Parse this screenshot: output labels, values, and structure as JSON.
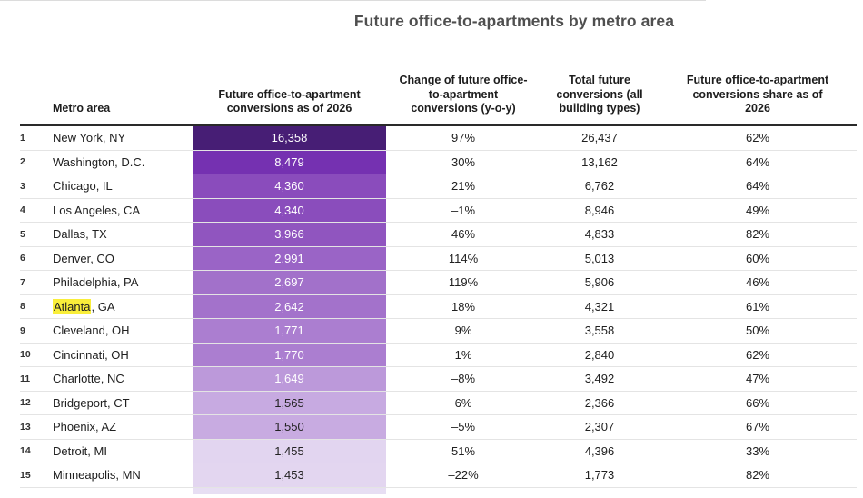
{
  "page": {
    "title": "Future office-to-apartments by metro area"
  },
  "table": {
    "columns": [
      {
        "key": "rank",
        "label": ""
      },
      {
        "key": "metro",
        "label": "Metro area"
      },
      {
        "key": "conversions",
        "label": "Future office-to-apartment conversions as of 2026"
      },
      {
        "key": "change",
        "label": "Change of future office-to-apartment conversions (y-o-y)"
      },
      {
        "key": "total",
        "label": "Total future conversions (all building types)"
      },
      {
        "key": "share",
        "label": "Future office-to-apartment conversions share as of 2026"
      }
    ],
    "rows": [
      {
        "rank": "1",
        "metro": "New York, NY",
        "conversions": "16,358",
        "change": "97%",
        "total": "26,437",
        "share": "62%",
        "cell_color": "#471e75",
        "cell_text_color": "#ffffff"
      },
      {
        "rank": "2",
        "metro": "Washington, D.C.",
        "conversions": "8,479",
        "change": "30%",
        "total": "13,162",
        "share": "64%",
        "cell_color": "#7531b1",
        "cell_text_color": "#ffffff"
      },
      {
        "rank": "3",
        "metro": "Chicago, IL",
        "conversions": "4,360",
        "change": "21%",
        "total": "6,762",
        "share": "64%",
        "cell_color": "#8a4cbc",
        "cell_text_color": "#ffffff"
      },
      {
        "rank": "4",
        "metro": "Los Angeles, CA",
        "conversions": "4,340",
        "change": "–1%",
        "total": "8,946",
        "share": "49%",
        "cell_color": "#8a4dbc",
        "cell_text_color": "#ffffff"
      },
      {
        "rank": "5",
        "metro": "Dallas, TX",
        "conversions": "3,966",
        "change": "46%",
        "total": "4,833",
        "share": "82%",
        "cell_color": "#9055bf",
        "cell_text_color": "#ffffff"
      },
      {
        "rank": "6",
        "metro": "Denver, CO",
        "conversions": "2,991",
        "change": "114%",
        "total": "5,013",
        "share": "60%",
        "cell_color": "#9a64c6",
        "cell_text_color": "#ffffff"
      },
      {
        "rank": "7",
        "metro": "Philadelphia, PA",
        "conversions": "2,697",
        "change": "119%",
        "total": "5,906",
        "share": "46%",
        "cell_color": "#a271ca",
        "cell_text_color": "#ffffff"
      },
      {
        "rank": "8",
        "metro": "Atlanta, GA",
        "metro_highlight": "Atlanta",
        "metro_rest": ", GA",
        "highlight_color": "#f9ee3a",
        "conversions": "2,642",
        "change": "18%",
        "total": "4,321",
        "share": "61%",
        "cell_color": "#a372cb",
        "cell_text_color": "#ffffff"
      },
      {
        "rank": "9",
        "metro": "Cleveland, OH",
        "conversions": "1,771",
        "change": "9%",
        "total": "3,558",
        "share": "50%",
        "cell_color": "#ab7ed0",
        "cell_text_color": "#ffffff"
      },
      {
        "rank": "10",
        "metro": "Cincinnati, OH",
        "conversions": "1,770",
        "change": "1%",
        "total": "2,840",
        "share": "62%",
        "cell_color": "#ab7ed0",
        "cell_text_color": "#ffffff"
      },
      {
        "rank": "11",
        "metro": "Charlotte, NC",
        "conversions": "1,649",
        "change": "–8%",
        "total": "3,492",
        "share": "47%",
        "cell_color": "#bc99da",
        "cell_text_color": "#ffffff"
      },
      {
        "rank": "12",
        "metro": "Bridgeport, CT",
        "conversions": "1,565",
        "change": "6%",
        "total": "2,366",
        "share": "66%",
        "cell_color": "#c7aae1",
        "cell_text_color": "#222222"
      },
      {
        "rank": "13",
        "metro": "Phoenix, AZ",
        "conversions": "1,550",
        "change": "–5%",
        "total": "2,307",
        "share": "67%",
        "cell_color": "#c8abe1",
        "cell_text_color": "#222222"
      },
      {
        "rank": "14",
        "metro": "Detroit, MI",
        "conversions": "1,455",
        "change": "51%",
        "total": "4,396",
        "share": "33%",
        "cell_color": "#e2d5f0",
        "cell_text_color": "#222222"
      },
      {
        "rank": "15",
        "metro": "Minneapolis, MN",
        "conversions": "1,453",
        "change": "–22%",
        "total": "1,773",
        "share": "82%",
        "cell_color": "#e3d6f0",
        "cell_text_color": "#222222"
      }
    ],
    "partial_row": {
      "cell_color": "#e7def3"
    }
  },
  "chart_data": {
    "type": "table",
    "title": "Future office-to-apartments by metro area",
    "columns": [
      "Rank",
      "Metro area",
      "Future office-to-apartment conversions as of 2026",
      "Change of future office-to-apartment conversions (y-o-y)",
      "Total future conversions (all building types)",
      "Future office-to-apartment conversions share as of 2026"
    ],
    "rows": [
      [
        1,
        "New York, NY",
        16358,
        97,
        26437,
        62
      ],
      [
        2,
        "Washington, D.C.",
        8479,
        30,
        13162,
        64
      ],
      [
        3,
        "Chicago, IL",
        4360,
        21,
        6762,
        64
      ],
      [
        4,
        "Los Angeles, CA",
        4340,
        -1,
        8946,
        49
      ],
      [
        5,
        "Dallas, TX",
        3966,
        46,
        4833,
        82
      ],
      [
        6,
        "Denver, CO",
        2991,
        114,
        5013,
        60
      ],
      [
        7,
        "Philadelphia, PA",
        2697,
        119,
        5906,
        46
      ],
      [
        8,
        "Atlanta, GA",
        2642,
        18,
        4321,
        61
      ],
      [
        9,
        "Cleveland, OH",
        1771,
        9,
        3558,
        50
      ],
      [
        10,
        "Cincinnati, OH",
        1770,
        1,
        2840,
        62
      ],
      [
        11,
        "Charlotte, NC",
        1649,
        -8,
        3492,
        47
      ],
      [
        12,
        "Bridgeport, CT",
        1565,
        6,
        2366,
        66
      ],
      [
        13,
        "Phoenix, AZ",
        1550,
        -5,
        2307,
        67
      ],
      [
        14,
        "Detroit, MI",
        1455,
        51,
        4396,
        33
      ],
      [
        15,
        "Minneapolis, MN",
        1453,
        -22,
        1773,
        82
      ]
    ],
    "notes": {
      "heatmap_column": "Future office-to-apartment conversions as of 2026",
      "heatmap_colors_dark_to_light": [
        "#471e75",
        "#e3d6f0"
      ],
      "highlighted_text": "Atlanta",
      "highlight_color": "#f9ee3a"
    }
  }
}
